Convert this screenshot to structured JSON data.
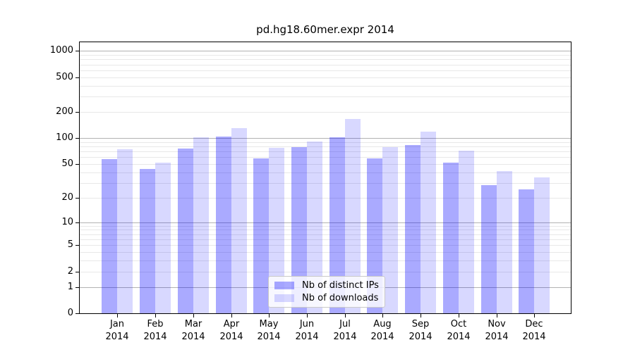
{
  "chart_data": {
    "type": "bar",
    "title": "pd.hg18.60mer.expr 2014",
    "xlabel": "",
    "ylabel": "",
    "categories": [
      "Jan 2014",
      "Feb 2014",
      "Mar 2014",
      "Apr 2014",
      "May 2014",
      "Jun 2014",
      "Jul 2014",
      "Aug 2014",
      "Sep 2014",
      "Oct 2014",
      "Nov 2014",
      "Dec 2014"
    ],
    "months": [
      "Jan",
      "Feb",
      "Mar",
      "Apr",
      "May",
      "Jun",
      "Jul",
      "Aug",
      "Sep",
      "Oct",
      "Nov",
      "Dec"
    ],
    "year": "2014",
    "series": [
      {
        "key": "ips",
        "name": "Nb of distinct IPs",
        "color": "#0000FF55",
        "values": [
          57,
          44,
          75,
          105,
          58,
          79,
          103,
          58,
          83,
          52,
          28,
          25
        ]
      },
      {
        "key": "downloads",
        "name": "Nb of downloads",
        "color": "#0000FF27",
        "values": [
          74,
          52,
          102,
          130,
          77,
          92,
          167,
          78,
          119,
          72,
          41,
          35
        ]
      }
    ],
    "yscale": "log10(1+y)",
    "ylim": [
      0,
      1280
    ],
    "yticks": [
      1000,
      500,
      200,
      100,
      50,
      20,
      10,
      5,
      2,
      1,
      0
    ],
    "major_gridlines": [
      1,
      10,
      100,
      1000
    ],
    "minor_gridlines": [
      2,
      3,
      4,
      5,
      6,
      7,
      8,
      9,
      20,
      30,
      40,
      50,
      60,
      70,
      80,
      90,
      200,
      300,
      400,
      500,
      600,
      700,
      800,
      900
    ],
    "grid": true,
    "legend_position": "bottom-center",
    "colors": {
      "axis": "#000000",
      "grid_major": "#b2b2b2",
      "grid_minor": "#e8e8e8",
      "text": "#000000",
      "background": "#ffffff"
    }
  }
}
